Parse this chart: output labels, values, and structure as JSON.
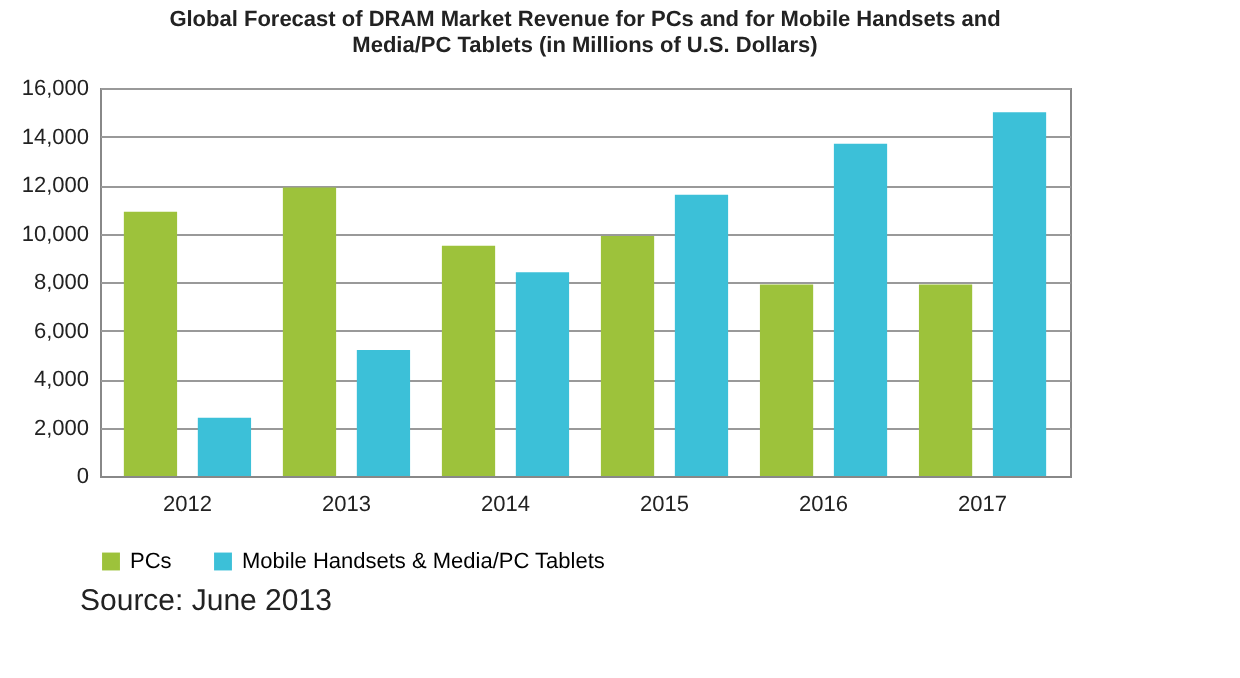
{
  "chart_data": {
    "type": "bar",
    "title": "Global Forecast of DRAM Market Revenue for PCs and for Mobile Handsets and Media/PC Tablets (in Millions of U.S. Dollars)",
    "categories": [
      "2012",
      "2013",
      "2014",
      "2015",
      "2016",
      "2017"
    ],
    "series": [
      {
        "name": "PCs",
        "color": "#9dc23b",
        "values": [
          10900,
          11900,
          9500,
          9900,
          7900,
          7900
        ]
      },
      {
        "name": "Mobile Handsets & Media/PC Tablets",
        "color": "#3cc0d8",
        "values": [
          2400,
          5200,
          8400,
          11600,
          13700,
          15000
        ]
      }
    ],
    "ylim": [
      0,
      16000
    ],
    "yticks": [
      0,
      {
        "value": 2000,
        "label": "2,000"
      },
      {
        "value": 4000,
        "label": "4,000"
      },
      {
        "value": 6000,
        "label": "6,000"
      },
      {
        "value": 8000,
        "label": "8,000"
      },
      {
        "value": 10000,
        "label": "10,000"
      },
      {
        "value": 12000,
        "label": "12,000"
      },
      {
        "value": 14000,
        "label": "14,000"
      },
      {
        "value": 16000,
        "label": "16,000"
      }
    ],
    "grid": "y",
    "legend": "bottom",
    "annotations": [
      "Source: June 2013"
    ]
  }
}
